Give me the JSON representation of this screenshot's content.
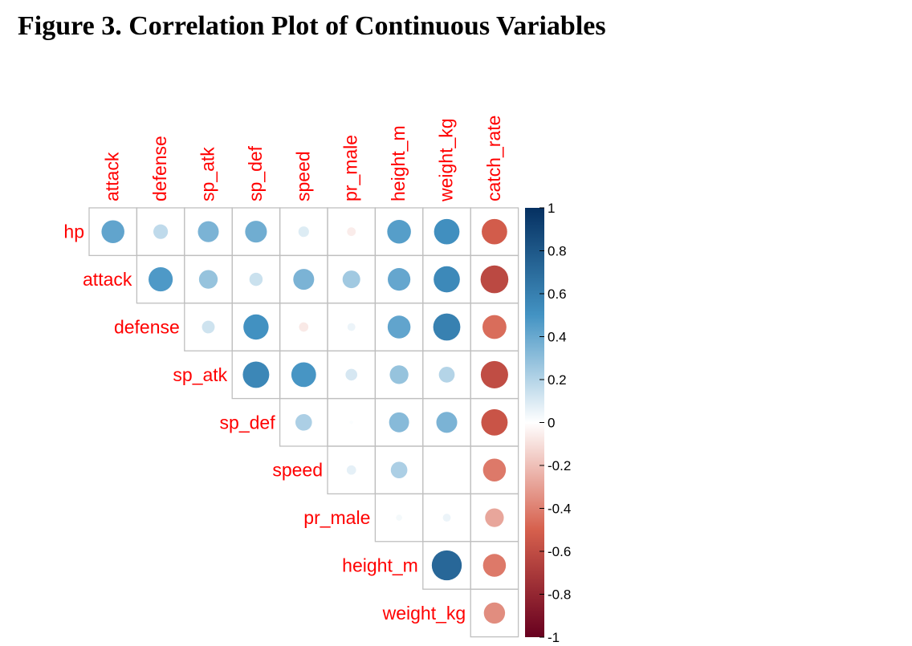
{
  "figure_title": "Figure 3. Correlation Plot of Continuous Variables",
  "chart_data": {
    "type": "heatmap",
    "style": "corrplot-circle-upper",
    "title": "Figure 3. Correlation Plot of Continuous Variables",
    "columns": [
      "attack",
      "defense",
      "sp_atk",
      "sp_def",
      "speed",
      "pr_male",
      "height_m",
      "weight_kg",
      "catch_rate"
    ],
    "rows": [
      "hp",
      "attack",
      "defense",
      "sp_atk",
      "sp_def",
      "speed",
      "pr_male",
      "height_m",
      "weight_kg"
    ],
    "values": [
      [
        0.42,
        0.17,
        0.35,
        0.38,
        0.09,
        -0.06,
        0.45,
        0.52,
        -0.52
      ],
      [
        null,
        0.47,
        0.28,
        0.14,
        0.35,
        0.25,
        0.41,
        0.55,
        -0.62
      ],
      [
        null,
        null,
        0.13,
        0.51,
        -0.07,
        0.05,
        0.42,
        0.59,
        -0.46
      ],
      [
        null,
        null,
        null,
        0.56,
        0.49,
        0.11,
        0.28,
        0.2,
        -0.6
      ],
      [
        null,
        null,
        null,
        null,
        0.22,
        0.01,
        0.32,
        0.35,
        -0.56
      ],
      [
        null,
        null,
        null,
        null,
        null,
        0.07,
        0.22,
        0.0,
        -0.42
      ],
      [
        null,
        null,
        null,
        null,
        null,
        null,
        0.03,
        0.05,
        -0.28
      ],
      [
        null,
        null,
        null,
        null,
        null,
        null,
        null,
        0.72,
        -0.42
      ],
      [
        null,
        null,
        null,
        null,
        null,
        null,
        null,
        null,
        -0.36
      ]
    ],
    "colorbar": {
      "range": [
        -1,
        1
      ],
      "tick_labels": [
        "1",
        "0.8",
        "0.6",
        "0.4",
        "0.2",
        "0",
        "-0.2",
        "-0.4",
        "-0.6",
        "-0.8",
        "-1"
      ],
      "colors": {
        "neg_end": "#67001f",
        "neg_mid": "#d6604d",
        "zero": "#ffffff",
        "pos_mid": "#4393c3",
        "pos_end": "#053061"
      }
    },
    "label_color": "#ff0000",
    "grid_color": "#bfbfbf",
    "grid": true,
    "legend": "right"
  }
}
